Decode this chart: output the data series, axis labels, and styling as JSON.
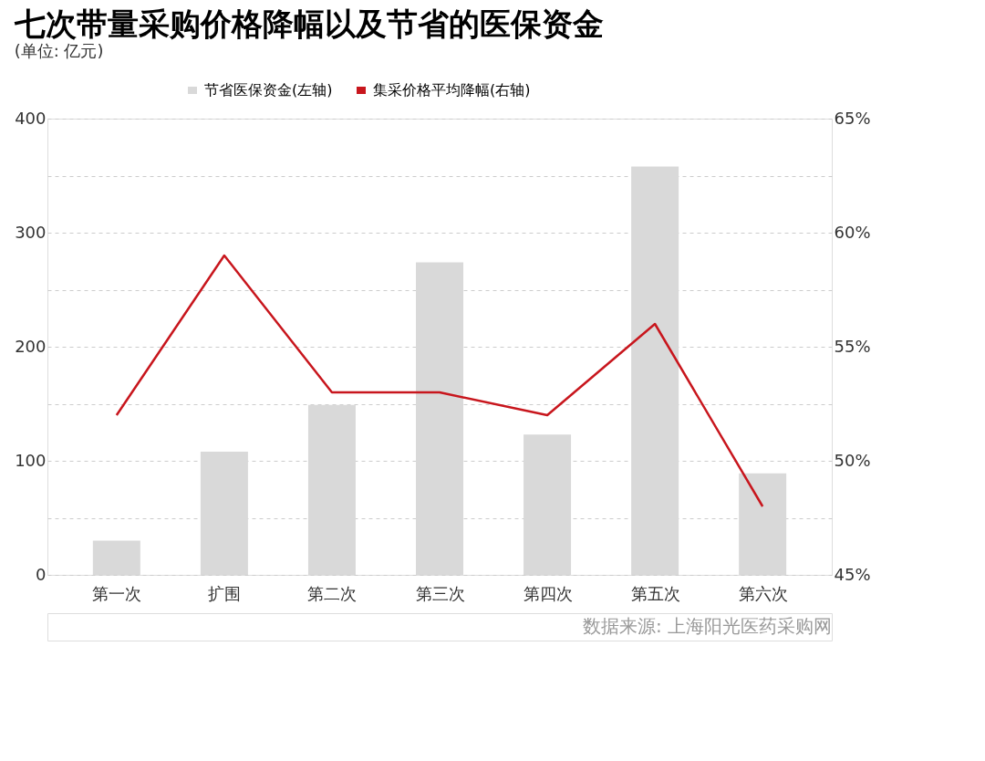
{
  "chart_data": {
    "type": "bar",
    "title": "七次带量采购价格降幅以及节省的医保资金",
    "subtitle": "(单位: 亿元)",
    "categories": [
      "第一次",
      "扩围",
      "第二次",
      "第三次",
      "第四次",
      "第五次",
      "第六次"
    ],
    "series": [
      {
        "name": "节省医保资金(左轴)",
        "color": "#d9d9d9",
        "values": [
          30,
          108,
          149,
          274,
          123,
          358,
          89
        ]
      },
      {
        "name": "集采价格平均降幅(右轴)",
        "type": "line",
        "axis": "y2",
        "color": "#c8161d",
        "values": [
          52,
          59,
          53,
          53,
          52,
          56,
          48
        ]
      }
    ],
    "ylim": [
      0,
      400
    ],
    "yticks": [
      0,
      {
        "value": 50,
        "label": null
      },
      100,
      {
        "value": 150,
        "label": null
      },
      200,
      {
        "value": 250,
        "label": null
      },
      300,
      {
        "value": 350,
        "label": null
      },
      400
    ],
    "y2lim": [
      45,
      65
    ],
    "y2ticks": [
      {
        "value": 45,
        "label": "45%"
      },
      {
        "value": 50,
        "label": "50%"
      },
      {
        "value": 55,
        "label": "55%"
      },
      {
        "value": 60,
        "label": "60%"
      },
      {
        "value": 65,
        "label": "65%"
      }
    ],
    "grid": "y",
    "legend": "top",
    "marker": "none",
    "annotations": [
      "数据来源: 上海阳光医药采购网"
    ]
  }
}
